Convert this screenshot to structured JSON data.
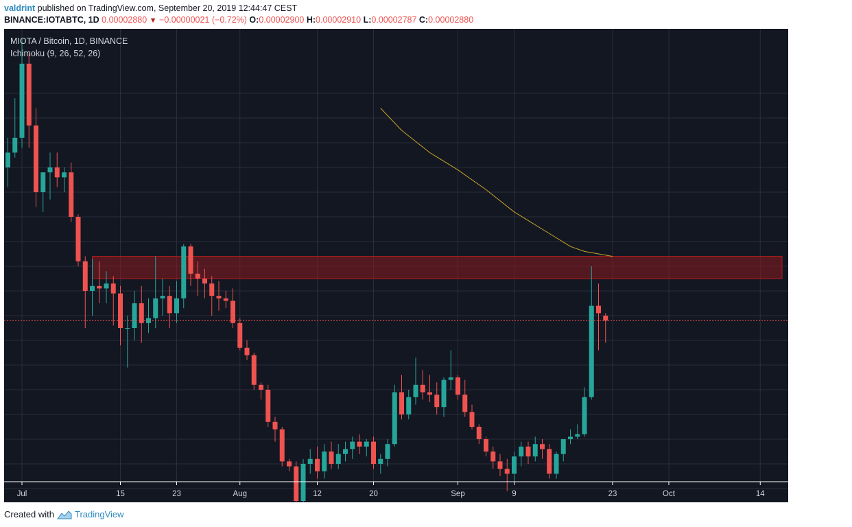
{
  "header": {
    "author": "valdrint",
    "published_text": " published on TradingView.com, September 20, 2019 12:44:47 CEST",
    "symbol": "BINANCE:IOTABTC, 1D",
    "price": "0.00002880",
    "change": "−0.00000021 (−0.72%)",
    "o_label": "O:",
    "o_value": "0.00002900",
    "h_label": "H:",
    "h_value": "0.00002910",
    "l_label": "L:",
    "l_value": "0.00002787",
    "c_label": "C:",
    "c_value": "0.00002880"
  },
  "legend": {
    "title": "MIOTA / Bitcoin, 1D, BINANCE",
    "indicator": "Ichimoku (9, 26, 52, 26)"
  },
  "footer": {
    "created_with": "Created with",
    "brand": "TradingView"
  },
  "colors": {
    "background": "#131722",
    "grid": "#2a2e39",
    "up": "#26a69a",
    "down": "#ef5350",
    "zone_fill": "#8b1a1f",
    "zone_border": "#b71c1c",
    "baseline": "#c9a628"
  },
  "chart_data": {
    "type": "candlestick",
    "title": "MIOTA / Bitcoin, 1D, BINANCE",
    "y_ticks": [
      "0.00003800",
      "0.00003700",
      "0.00003600",
      "0.00003500",
      "0.00003400",
      "0.00003300",
      "0.00003200",
      "0.00003100",
      "0.00003000",
      "0.00002800",
      "0.00002700",
      "0.00002600",
      "0.00002500",
      "0.00002400",
      "0.00002300",
      "0.00002200",
      "0.00002100"
    ],
    "x_ticks": [
      {
        "label": "Jul",
        "day": 0
      },
      {
        "label": "15",
        "day": 14
      },
      {
        "label": "23",
        "day": 22
      },
      {
        "label": "Aug",
        "day": 31
      },
      {
        "label": "12",
        "day": 42
      },
      {
        "label": "20",
        "day": 50
      },
      {
        "label": "Sep",
        "day": 62
      },
      {
        "label": "9",
        "day": 70
      },
      {
        "label": "23",
        "day": 84
      },
      {
        "label": "Oct",
        "day": 92
      },
      {
        "label": "14",
        "day": 105
      }
    ],
    "current_price": "0.00002880",
    "resistance_zone": [
      3.05e-05,
      3.14e-05
    ],
    "candles": [
      [
        3.36e-05,
        3.53e-05,
        3.31e-05,
        3.5e-05
      ],
      [
        3.5e-05,
        3.62e-05,
        3.42e-05,
        3.56e-05
      ],
      [
        3.56e-05,
        3.78e-05,
        3.54e-05,
        3.62e-05
      ],
      [
        3.62e-05,
        4.02e-05,
        3.58e-05,
        3.92e-05
      ],
      [
        3.92e-05,
        3.96e-05,
        3.58e-05,
        3.67e-05
      ],
      [
        3.67e-05,
        3.74e-05,
        3.34e-05,
        3.4e-05
      ],
      [
        3.4e-05,
        3.48e-05,
        3.32e-05,
        3.48e-05
      ],
      [
        3.48e-05,
        3.56e-05,
        3.37e-05,
        3.5e-05
      ],
      [
        3.5e-05,
        3.56e-05,
        3.42e-05,
        3.46e-05
      ],
      [
        3.46e-05,
        3.5e-05,
        3.4e-05,
        3.48e-05
      ],
      [
        3.48e-05,
        3.52e-05,
        3.28e-05,
        3.3e-05
      ],
      [
        3.3e-05,
        3.31e-05,
        3.1e-05,
        3.12e-05
      ],
      [
        3.12e-05,
        3.14e-05,
        2.85e-05,
        3e-05
      ],
      [
        3e-05,
        3.13e-05,
        2.9e-05,
        3.02e-05
      ],
      [
        3.02e-05,
        3.12e-05,
        2.95e-05,
        3.01e-05
      ],
      [
        3.01e-05,
        3.08e-05,
        2.95e-05,
        3.03e-05
      ],
      [
        3.03e-05,
        3.06e-05,
        2.86e-05,
        2.99e-05
      ],
      [
        2.99e-05,
        3.02e-05,
        2.78e-05,
        2.85e-05
      ],
      [
        2.85e-05,
        2.9e-05,
        2.69e-05,
        2.85e-05
      ],
      [
        2.85e-05,
        3e-05,
        2.8e-05,
        2.95e-05
      ],
      [
        2.95e-05,
        3.02e-05,
        2.79e-05,
        2.87e-05
      ],
      [
        2.87e-05,
        2.97e-05,
        2.83e-05,
        2.89e-05
      ],
      [
        2.89e-05,
        3.14e-05,
        2.85e-05,
        2.97e-05
      ],
      [
        2.97e-05,
        3.05e-05,
        2.9e-05,
        2.98e-05
      ],
      [
        2.98e-05,
        3.02e-05,
        2.85e-05,
        2.91e-05
      ],
      [
        2.91e-05,
        3.04e-05,
        2.87e-05,
        2.97e-05
      ],
      [
        2.97e-05,
        3.19e-05,
        2.93e-05,
        3.18e-05
      ],
      [
        3.18e-05,
        3.19e-05,
        3.02e-05,
        3.07e-05
      ],
      [
        3.07e-05,
        3.12e-05,
        2.98e-05,
        3.05e-05
      ],
      [
        3.05e-05,
        3.09e-05,
        2.97e-05,
        3.03e-05
      ],
      [
        3.03e-05,
        3.06e-05,
        2.9e-05,
        2.98e-05
      ],
      [
        2.98e-05,
        3.04e-05,
        2.92e-05,
        2.97e-05
      ],
      [
        2.97e-05,
        3e-05,
        2.93e-05,
        2.96e-05
      ],
      [
        2.96e-05,
        3.01e-05,
        2.85e-05,
        2.87e-05
      ],
      [
        2.87e-05,
        2.89e-05,
        2.76e-05,
        2.77e-05
      ],
      [
        2.77e-05,
        2.8e-05,
        2.72e-05,
        2.74e-05
      ],
      [
        2.74e-05,
        2.75e-05,
        2.6e-05,
        2.62e-05
      ],
      [
        2.62e-05,
        2.63e-05,
        2.56e-05,
        2.6e-05
      ],
      [
        2.6e-05,
        2.62e-05,
        2.45e-05,
        2.47e-05
      ],
      [
        2.47e-05,
        2.49e-05,
        2.39e-05,
        2.44e-05
      ],
      [
        2.44e-05,
        2.45e-05,
        2.29e-05,
        2.31e-05
      ],
      [
        2.31e-05,
        2.32e-05,
        2.27e-05,
        2.29e-05
      ],
      [
        2.29e-05,
        2.31e-05,
        2.11e-05,
        2.15e-05
      ],
      [
        2.15e-05,
        2.32e-05,
        2.13e-05,
        2.3e-05
      ],
      [
        2.3e-05,
        2.36e-05,
        2.26e-05,
        2.32e-05
      ],
      [
        2.32e-05,
        2.37e-05,
        2.24e-05,
        2.27e-05
      ],
      [
        2.27e-05,
        2.38e-05,
        2.24e-05,
        2.35e-05
      ],
      [
        2.35e-05,
        2.39e-05,
        2.28e-05,
        2.3e-05
      ],
      [
        2.3e-05,
        2.38e-05,
        2.28e-05,
        2.34e-05
      ],
      [
        2.34e-05,
        2.39e-05,
        2.31e-05,
        2.36e-05
      ],
      [
        2.36e-05,
        2.41e-05,
        2.32e-05,
        2.39e-05
      ],
      [
        2.39e-05,
        2.42e-05,
        2.34e-05,
        2.37e-05
      ],
      [
        2.37e-05,
        2.4e-05,
        2.33e-05,
        2.39e-05
      ],
      [
        2.39e-05,
        2.41e-05,
        2.28e-05,
        2.3e-05
      ],
      [
        2.3e-05,
        2.34e-05,
        2.26e-05,
        2.32e-05
      ],
      [
        2.32e-05,
        2.4e-05,
        2.29e-05,
        2.38e-05
      ],
      [
        2.38e-05,
        2.62e-05,
        2.37e-05,
        2.59e-05
      ],
      [
        2.59e-05,
        2.66e-05,
        2.48e-05,
        2.5e-05
      ],
      [
        2.5e-05,
        2.6e-05,
        2.48e-05,
        2.57e-05
      ],
      [
        2.57e-05,
        2.73e-05,
        2.54e-05,
        2.62e-05
      ],
      [
        2.62e-05,
        2.68e-05,
        2.56e-05,
        2.59e-05
      ],
      [
        2.59e-05,
        2.66e-05,
        2.55e-05,
        2.58e-05
      ],
      [
        2.58e-05,
        2.63e-05,
        2.5e-05,
        2.53e-05
      ],
      [
        2.53e-05,
        2.65e-05,
        2.49e-05,
        2.64e-05
      ],
      [
        2.64e-05,
        2.76e-05,
        2.6e-05,
        2.65e-05
      ],
      [
        2.65e-05,
        2.66e-05,
        2.56e-05,
        2.58e-05
      ],
      [
        2.58e-05,
        2.64e-05,
        2.49e-05,
        2.51e-05
      ],
      [
        2.51e-05,
        2.54e-05,
        2.44e-05,
        2.45e-05
      ],
      [
        2.45e-05,
        2.46e-05,
        2.38e-05,
        2.4e-05
      ],
      [
        2.4e-05,
        2.41e-05,
        2.33e-05,
        2.35e-05
      ],
      [
        2.35e-05,
        2.37e-05,
        2.28e-05,
        2.31e-05
      ],
      [
        2.31e-05,
        2.34e-05,
        2.25e-05,
        2.28e-05
      ],
      [
        2.28e-05,
        2.32e-05,
        2.19e-05,
        2.26e-05
      ],
      [
        2.26e-05,
        2.35e-05,
        2.23e-05,
        2.33e-05
      ],
      [
        2.33e-05,
        2.39e-05,
        2.29e-05,
        2.37e-05
      ],
      [
        2.37e-05,
        2.39e-05,
        2.3e-05,
        2.33e-05
      ],
      [
        2.33e-05,
        2.41e-05,
        2.31e-05,
        2.38e-05
      ],
      [
        2.38e-05,
        2.4e-05,
        2.32e-05,
        2.36e-05
      ],
      [
        2.36e-05,
        2.38e-05,
        2.24e-05,
        2.26e-05
      ],
      [
        2.26e-05,
        2.35e-05,
        2.24e-05,
        2.34e-05
      ],
      [
        2.34e-05,
        2.4e-05,
        2.31e-05,
        2.4e-05
      ],
      [
        2.4e-05,
        2.44e-05,
        2.38e-05,
        2.41e-05
      ],
      [
        2.41e-05,
        2.46e-05,
        2.4e-05,
        2.42e-05
      ],
      [
        2.42e-05,
        2.61e-05,
        2.41e-05,
        2.57e-05
      ],
      [
        2.57e-05,
        3.1e-05,
        2.56e-05,
        2.94e-05
      ],
      [
        2.94e-05,
        3.03e-05,
        2.76e-05,
        2.91e-05
      ],
      [
        2.9e-05,
        2.91e-05,
        2.79e-05,
        2.88e-05
      ]
    ],
    "baseline_line": [
      [
        51,
        3.74e-05
      ],
      [
        54,
        3.65e-05
      ],
      [
        58,
        3.56e-05
      ],
      [
        62,
        3.49e-05
      ],
      [
        66,
        3.41e-05
      ],
      [
        70,
        3.32e-05
      ],
      [
        74,
        3.25e-05
      ],
      [
        78,
        3.18e-05
      ],
      [
        80,
        3.16e-05
      ],
      [
        82,
        3.15e-05
      ],
      [
        84,
        3.14e-05
      ]
    ]
  }
}
